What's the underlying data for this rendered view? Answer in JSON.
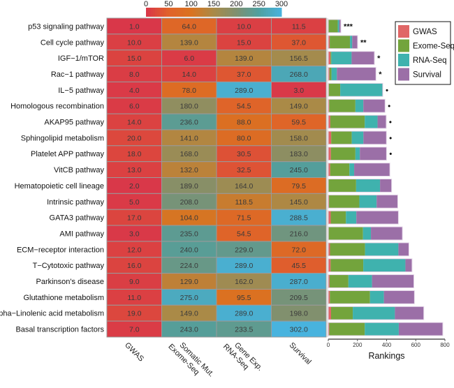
{
  "chart_data": [
    {
      "type": "heatmap",
      "title": "",
      "rows": [
        "p53 signaling pathway",
        "Cell cycle pathway",
        "IGF−1/mTOR",
        "Rac−1 pathway",
        "IL−5 pathway",
        "Homologous recombination",
        "AKAP95 pathway",
        "Sphingolipid metabolism",
        "Platelet APP pathway",
        "VitCB pathway",
        "Hematopoietic cell lineage",
        "Intrinsic pathway",
        "GATA3 pathway",
        "AMI pathway",
        "ECM−receptor interaction",
        "T−Cytotoxic pathway",
        "Parkinson's disease",
        "Glutathione metabolism",
        "alpha−Linolenic acid metabolism",
        "Basal transcription factors"
      ],
      "columns": [
        {
          "line1": "GWAS",
          "line2": ""
        },
        {
          "line1": "Somatic Mut.",
          "line2": "Exome-Seq"
        },
        {
          "line1": "Gene Exp.",
          "line2": "RNA-Seq"
        },
        {
          "line1": "Survival",
          "line2": ""
        }
      ],
      "values": [
        [
          1.0,
          64.0,
          10.0,
          11.5
        ],
        [
          10.0,
          139.0,
          15.0,
          37.0
        ],
        [
          15.0,
          6.0,
          139.0,
          156.5
        ],
        [
          8.0,
          14.0,
          37.0,
          268.0
        ],
        [
          4.0,
          78.0,
          289.0,
          3.0
        ],
        [
          6.0,
          180.0,
          54.5,
          149.0
        ],
        [
          14.0,
          236.0,
          88.0,
          59.5
        ],
        [
          20.0,
          141.0,
          80.0,
          158.0
        ],
        [
          18.0,
          168.0,
          30.5,
          183.0
        ],
        [
          13.0,
          132.0,
          32.5,
          245.0
        ],
        [
          2.0,
          189.0,
          164.0,
          79.5
        ],
        [
          5.0,
          208.0,
          118.5,
          145.0
        ],
        [
          17.0,
          104.0,
          71.5,
          288.5
        ],
        [
          3.0,
          235.0,
          54.5,
          216.0
        ],
        [
          12.0,
          240.0,
          229.0,
          72.0
        ],
        [
          16.0,
          224.0,
          289.0,
          45.5
        ],
        [
          9.0,
          129.0,
          162.0,
          287.0
        ],
        [
          11.0,
          275.0,
          95.5,
          209.5
        ],
        [
          19.0,
          149.0,
          289.0,
          198.0
        ],
        [
          7.0,
          243.0,
          233.5,
          302.0
        ]
      ],
      "colorbar": {
        "ticks": [
          0,
          50,
          100,
          150,
          200,
          250,
          300
        ],
        "range": [
          0,
          300
        ],
        "colors": [
          "#d9364a",
          "#e0622a",
          "#da7320",
          "#a98a48",
          "#7f9070",
          "#4fa0a0",
          "#48b3de"
        ]
      },
      "cell_border_color": "#9a9a9a"
    },
    {
      "type": "bar",
      "stacked": true,
      "orientation": "horizontal",
      "categories": [
        "p53 signaling pathway",
        "Cell cycle pathway",
        "IGF−1/mTOR",
        "Rac−1 pathway",
        "IL−5 pathway",
        "Homologous recombination",
        "AKAP95 pathway",
        "Sphingolipid metabolism",
        "Platelet APP pathway",
        "VitCB pathway",
        "Hematopoietic cell lineage",
        "Intrinsic pathway",
        "GATA3 pathway",
        "AMI pathway",
        "ECM−receptor interaction",
        "T−Cytotoxic pathway",
        "Parkinson's disease",
        "Glutathione metabolism",
        "alpha−Linolenic acid metabolism",
        "Basal transcription factors"
      ],
      "series": [
        {
          "name": "GWAS",
          "color": "#e06666",
          "values": [
            1,
            10,
            15,
            8,
            4,
            6,
            14,
            20,
            18,
            13,
            2,
            5,
            17,
            3,
            12,
            16,
            9,
            11,
            19,
            7
          ]
        },
        {
          "name": "Exome-Seq",
          "color": "#73a43c",
          "values": [
            64,
            139,
            6,
            14,
            78,
            180,
            236,
            141,
            168,
            132,
            189,
            208,
            104,
            235,
            240,
            224,
            129,
            275,
            149,
            243
          ]
        },
        {
          "name": "RNA-Seq",
          "color": "#3fb2ae",
          "values": [
            10,
            15,
            139,
            37,
            289,
            54.5,
            88,
            80,
            30.5,
            32.5,
            164,
            118.5,
            71.5,
            54.5,
            229,
            289,
            162,
            95.5,
            289,
            233.5
          ]
        },
        {
          "name": "Survival",
          "color": "#9b6fa7",
          "values": [
            11.5,
            37,
            156.5,
            268,
            3,
            149,
            59.5,
            158,
            183,
            245,
            79.5,
            145,
            288.5,
            216,
            72,
            45.5,
            287,
            209.5,
            198,
            302
          ]
        }
      ],
      "annotations": [
        "***",
        "**",
        "*",
        "*",
        "•",
        "•",
        "•",
        "•",
        "•",
        "",
        "",
        "",
        "",
        "",
        "",
        "",
        "",
        "",
        "",
        ""
      ],
      "xlabel": "Rankings",
      "xticks": [
        0,
        200,
        400,
        600,
        800
      ],
      "xlim": [
        0,
        800
      ],
      "legend": {
        "placement": "top-right",
        "entries": [
          "GWAS",
          "Exome-Seq",
          "RNA-Seq",
          "Survival"
        ]
      }
    }
  ]
}
